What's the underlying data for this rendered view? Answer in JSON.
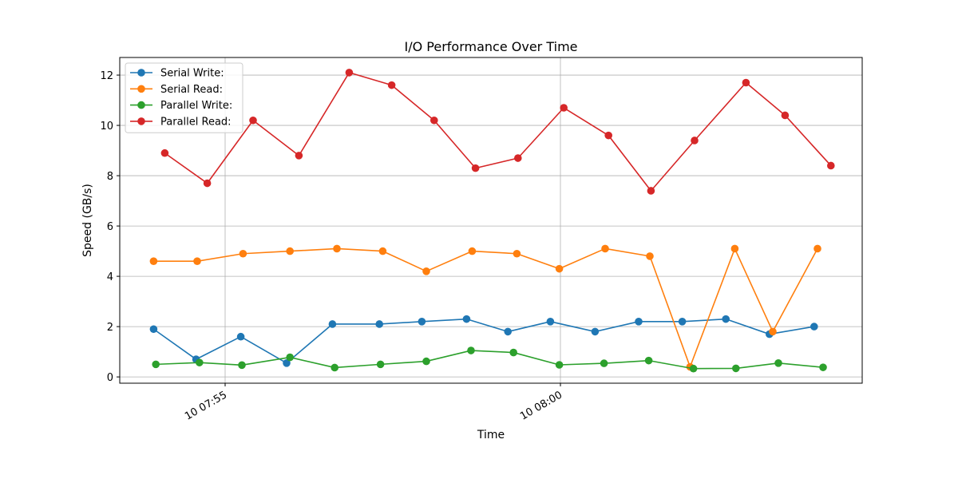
{
  "chart_data": {
    "type": "line",
    "title": "I/O Performance Over Time",
    "xlabel": "Time",
    "ylabel": "Speed (GB/s)",
    "ylim": [
      -0.25,
      12.7
    ],
    "yticks": [
      0,
      2,
      4,
      6,
      8,
      10,
      12
    ],
    "xticks": [
      {
        "t": "07:55:00",
        "label": "10 07:55"
      },
      {
        "t": "08:00:00",
        "label": "10 08:00"
      }
    ],
    "grid": true,
    "legend_position": "upper-left",
    "series": [
      {
        "name": "Serial Write:",
        "color": "#1f77b4",
        "x": [
          "07:53:56",
          "07:54:34",
          "07:55:14",
          "07:55:55",
          "07:56:36",
          "07:57:18",
          "07:57:56",
          "07:58:36",
          "07:59:13",
          "07:59:51",
          "08:00:31",
          "08:01:10",
          "08:01:49",
          "08:02:28",
          "08:03:07",
          "08:03:47"
        ],
        "y": [
          1.9,
          0.7,
          1.6,
          0.55,
          2.1,
          2.1,
          2.2,
          2.3,
          1.8,
          2.2,
          1.8,
          2.2,
          2.2,
          2.3,
          1.7,
          2.0
        ]
      },
      {
        "name": "Serial Read:",
        "color": "#ff7f0e",
        "x": [
          "07:53:56",
          "07:54:35",
          "07:55:16",
          "07:55:58",
          "07:56:40",
          "07:57:21",
          "07:58:00",
          "07:58:41",
          "07:59:21",
          "07:59:59",
          "08:00:40",
          "08:01:20",
          "08:01:56",
          "08:02:36",
          "08:03:10",
          "08:03:50"
        ],
        "y": [
          4.6,
          4.6,
          4.9,
          5.0,
          5.1,
          5.0,
          4.2,
          5.0,
          4.9,
          4.3,
          5.1,
          4.8,
          0.4,
          5.1,
          1.8,
          5.1
        ]
      },
      {
        "name": "Parallel Write:",
        "color": "#2ca02c",
        "x": [
          "07:53:58",
          "07:54:37",
          "07:55:15",
          "07:55:58",
          "07:56:38",
          "07:57:19",
          "07:58:00",
          "07:58:40",
          "07:59:18",
          "07:59:59",
          "08:00:39",
          "08:01:19",
          "08:01:59",
          "08:02:37",
          "08:03:15",
          "08:03:55"
        ],
        "y": [
          0.5,
          0.57,
          0.47,
          0.78,
          0.37,
          0.5,
          0.62,
          1.05,
          0.97,
          0.48,
          0.54,
          0.65,
          0.33,
          0.34,
          0.55,
          0.38
        ]
      },
      {
        "name": "Parallel Read:",
        "color": "#d62728",
        "x": [
          "07:54:06",
          "07:54:44",
          "07:55:25",
          "07:56:06",
          "07:56:51",
          "07:57:29",
          "07:58:07",
          "07:58:44",
          "07:59:22",
          "08:00:03",
          "08:00:43",
          "08:01:21",
          "08:02:00",
          "08:02:46",
          "08:03:21",
          "08:04:02"
        ],
        "y": [
          8.9,
          7.7,
          10.2,
          8.8,
          12.1,
          11.6,
          10.2,
          8.3,
          8.7,
          10.7,
          9.6,
          7.4,
          9.4,
          11.7,
          10.4,
          8.4
        ]
      }
    ]
  }
}
